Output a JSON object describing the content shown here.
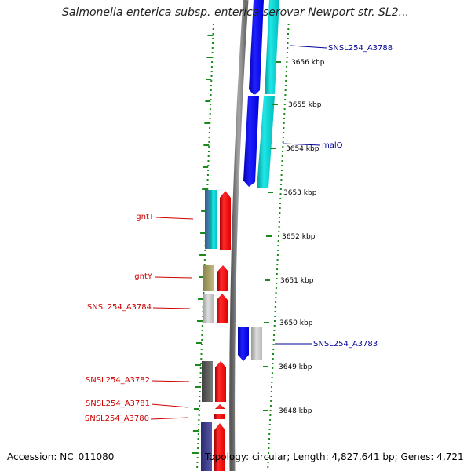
{
  "title": "Salmonella enterica subsp. enterica serovar Newport str. SL2...",
  "footer": {
    "accession": "Accession: NC_011080",
    "summary": "Topology: circular; Length: 4,827,641 bp; Genes: 4,721"
  },
  "colors": {
    "forward_cds": "#ff0000",
    "reverse_cds": "#0000ff",
    "cyan_track": "#00c8c8",
    "backbone": "#808080",
    "tick_dots": "#1a8a1a",
    "left_label_color": "#cc0000",
    "right_label_color": "#000099"
  },
  "scale": {
    "unit": "kbp",
    "ticks": [
      {
        "label": "3656 kbp"
      },
      {
        "label": "3655 kbp"
      },
      {
        "label": "3654 kbp"
      },
      {
        "label": "3653 kbp"
      },
      {
        "label": "3652 kbp"
      },
      {
        "label": "3651 kbp"
      },
      {
        "label": "3650 kbp"
      },
      {
        "label": "3649 kbp"
      },
      {
        "label": "3648 kbp"
      }
    ]
  },
  "gene_labels_left": [
    {
      "label": "gntT"
    },
    {
      "label": "gntY"
    },
    {
      "label": "SNSL254_A3784"
    },
    {
      "label": "SNSL254_A3782"
    },
    {
      "label": "SNSL254_A3781"
    },
    {
      "label": "SNSL254_A3780"
    }
  ],
  "gene_labels_right": [
    {
      "label": "SNSL254_A3788"
    },
    {
      "label": "malQ"
    },
    {
      "label": "SNSL254_A3783"
    }
  ]
}
